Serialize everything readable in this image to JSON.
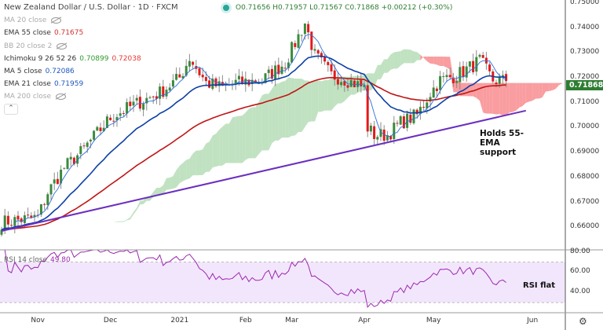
{
  "header": {
    "title": "New Zealand Dollar / U.S. Dollar · 1D · FXCM",
    "open": "O0.71656",
    "high": "H0.71957",
    "low": "L0.71567",
    "close": "C0.71868",
    "change": "+0.00212 (+0.30%)"
  },
  "legend": [
    {
      "label": "MA 20 close",
      "hidden": true
    },
    {
      "label": "EMA 55 close",
      "value": "0.71675"
    },
    {
      "label": "BB 20 close 2",
      "hidden": true
    },
    {
      "label": "Ichimoku 9 26 52 26",
      "value": "0.70899",
      "value2": "0.72038"
    },
    {
      "label": "MA 5 close",
      "value": "0.72086"
    },
    {
      "label": "EMA 21 close",
      "value": "0.71959"
    },
    {
      "label": "MA 200 close",
      "hidden": true
    }
  ],
  "collapse_icon": "chevron-up-icon",
  "last_price": "0.71868",
  "annotations": {
    "price_note": "Holds 55-EMA support",
    "rsi_note": "RSI flat"
  },
  "rsi_legend": {
    "label": "RSI 14 close",
    "value": "49.80"
  },
  "settings_icon": "gear-icon",
  "colors": {
    "up": "#3a8a3c",
    "down": "#e3191b",
    "ema55": "#c01515",
    "ema21": "#0d3fa6",
    "ma5": "#2f6fd6",
    "cloud_up": "#a5d6a7",
    "cloud_down": "#f77c80",
    "trendline": "#6a2fbf",
    "rsi": "#9c27b0"
  },
  "chart_data": {
    "type": "candlestick",
    "title": "New Zealand Dollar / U.S. Dollar · 1D · FXCM",
    "price_ticks": [
      "0.75000",
      "0.74000",
      "0.73000",
      "0.72000",
      "0.71000",
      "0.70000",
      "0.69000",
      "0.68000",
      "0.67000",
      "0.66000"
    ],
    "price_range": [
      0.6525,
      0.7512
    ],
    "time_ticks": [
      "Nov",
      "Dec",
      "2021",
      "Feb",
      "Mar",
      "Apr",
      "May",
      "Jun"
    ],
    "time_tick_days": [
      11,
      33,
      54,
      74,
      88,
      110,
      131,
      161
    ],
    "close_path": [
      [
        0,
        0.662
      ],
      [
        11,
        0.664
      ],
      [
        14,
        0.674
      ],
      [
        19,
        0.684
      ],
      [
        24,
        0.69
      ],
      [
        33,
        0.704
      ],
      [
        40,
        0.709
      ],
      [
        48,
        0.714
      ],
      [
        54,
        0.72
      ],
      [
        57,
        0.728
      ],
      [
        62,
        0.718
      ],
      [
        67,
        0.716
      ],
      [
        71,
        0.718
      ],
      [
        79,
        0.719
      ],
      [
        86,
        0.726
      ],
      [
        92,
        0.742
      ],
      [
        95,
        0.729
      ],
      [
        100,
        0.721
      ],
      [
        105,
        0.719
      ],
      [
        110,
        0.716
      ],
      [
        111,
        0.7
      ],
      [
        113,
        0.697
      ],
      [
        117,
        0.697
      ],
      [
        121,
        0.702
      ],
      [
        126,
        0.705
      ],
      [
        130,
        0.714
      ],
      [
        133,
        0.719
      ],
      [
        138,
        0.721
      ],
      [
        143,
        0.725
      ],
      [
        145,
        0.727
      ],
      [
        149,
        0.719
      ],
      [
        153,
        0.71868
      ]
    ],
    "trendline": [
      [
        0,
        0.6585
      ],
      [
        159,
        0.7068
      ]
    ],
    "rsi_ticks": [
      "80.00",
      "60.00",
      "40.00"
    ],
    "rsi_range": [
      20,
      82
    ],
    "rsi_band": [
      30,
      70
    ],
    "rsi_last": 49.8
  }
}
